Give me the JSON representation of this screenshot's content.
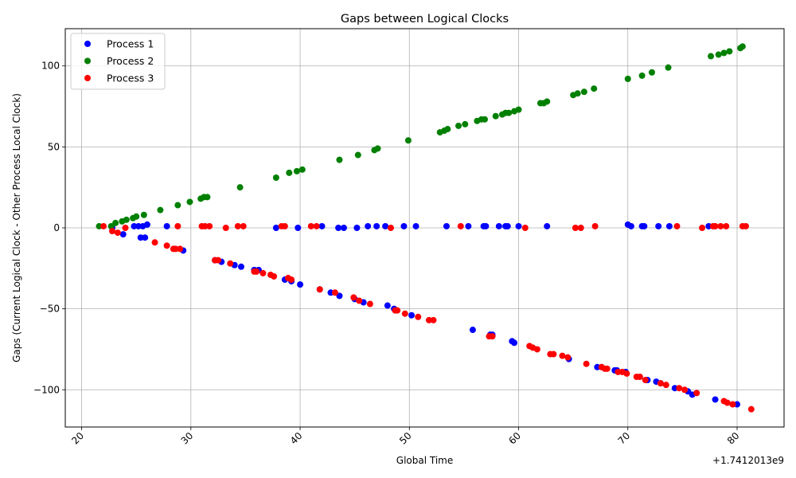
{
  "chart_data": {
    "type": "scatter",
    "title": "Gaps between Logical Clocks",
    "xlabel": "Global Time",
    "ylabel": "Gaps (Current Logical Clock - Other Process Local Clock)",
    "x_offset_label": "+1.7412013e9",
    "xlim": [
      18.5,
      84.3
    ],
    "ylim": [
      -123,
      123
    ],
    "xticks": [
      20,
      30,
      40,
      50,
      60,
      70,
      80
    ],
    "yticks": [
      -100,
      -50,
      0,
      50,
      100
    ],
    "grid": true,
    "legend_position": "top-left",
    "series": [
      {
        "name": "Process 1",
        "color": "#0000ff",
        "points": [
          [
            22.8,
            0
          ],
          [
            23.8,
            -4
          ],
          [
            24.8,
            1
          ],
          [
            25.2,
            1
          ],
          [
            25.4,
            -6
          ],
          [
            25.6,
            1
          ],
          [
            25.8,
            -6
          ],
          [
            26.0,
            2
          ],
          [
            27.8,
            1
          ],
          [
            29.3,
            -14
          ],
          [
            32.2,
            -20
          ],
          [
            32.8,
            -21
          ],
          [
            34.0,
            -23
          ],
          [
            34.6,
            -24
          ],
          [
            35.8,
            -26
          ],
          [
            36.2,
            -26
          ],
          [
            37.8,
            0
          ],
          [
            38.6,
            -32
          ],
          [
            39.2,
            -33
          ],
          [
            39.8,
            0
          ],
          [
            40.0,
            -35
          ],
          [
            42.0,
            1
          ],
          [
            41.8,
            -38
          ],
          [
            42.8,
            -40
          ],
          [
            43.5,
            0
          ],
          [
            43.6,
            -42
          ],
          [
            44.0,
            0
          ],
          [
            45.0,
            -44
          ],
          [
            45.2,
            0
          ],
          [
            45.8,
            -46
          ],
          [
            46.2,
            1
          ],
          [
            47.0,
            1
          ],
          [
            47.8,
            1
          ],
          [
            48.0,
            -48
          ],
          [
            48.6,
            -50
          ],
          [
            49.5,
            1
          ],
          [
            50.2,
            -54
          ],
          [
            50.6,
            1
          ],
          [
            53.4,
            1
          ],
          [
            55.4,
            1
          ],
          [
            55.8,
            -63
          ],
          [
            56.8,
            1
          ],
          [
            57.0,
            1
          ],
          [
            57.4,
            -66
          ],
          [
            57.6,
            -66
          ],
          [
            58.2,
            1
          ],
          [
            58.8,
            1
          ],
          [
            59.0,
            1
          ],
          [
            59.4,
            -70
          ],
          [
            59.6,
            -71
          ],
          [
            60.0,
            1
          ],
          [
            62.6,
            1
          ],
          [
            64.6,
            -81
          ],
          [
            67.2,
            -86
          ],
          [
            67.6,
            -86
          ],
          [
            68.8,
            -88
          ],
          [
            69.0,
            -88
          ],
          [
            69.8,
            -89
          ],
          [
            70.0,
            2
          ],
          [
            70.3,
            1
          ],
          [
            71.3,
            1
          ],
          [
            71.5,
            1
          ],
          [
            71.8,
            -94
          ],
          [
            72.6,
            -95
          ],
          [
            72.8,
            1
          ],
          [
            73.0,
            -96
          ],
          [
            73.8,
            1
          ],
          [
            74.3,
            -99
          ],
          [
            75.5,
            -101
          ],
          [
            75.9,
            -103
          ],
          [
            77.4,
            1
          ],
          [
            78.0,
            -106
          ],
          [
            80.0,
            -109
          ]
        ]
      },
      {
        "name": "Process 2",
        "color": "#008000",
        "points": [
          [
            21.6,
            1
          ],
          [
            22.7,
            1
          ],
          [
            23.1,
            3
          ],
          [
            23.7,
            4
          ],
          [
            24.1,
            5
          ],
          [
            24.7,
            6
          ],
          [
            25.0,
            7
          ],
          [
            25.7,
            8
          ],
          [
            27.2,
            11
          ],
          [
            28.8,
            14
          ],
          [
            29.9,
            16
          ],
          [
            30.9,
            18
          ],
          [
            31.2,
            19
          ],
          [
            31.5,
            19
          ],
          [
            34.5,
            25
          ],
          [
            37.8,
            31
          ],
          [
            39.0,
            34
          ],
          [
            39.7,
            35
          ],
          [
            40.2,
            36
          ],
          [
            43.6,
            42
          ],
          [
            45.3,
            45
          ],
          [
            46.8,
            48
          ],
          [
            47.1,
            49
          ],
          [
            49.9,
            54
          ],
          [
            52.8,
            59
          ],
          [
            53.2,
            60
          ],
          [
            53.5,
            61
          ],
          [
            54.5,
            63
          ],
          [
            55.1,
            64
          ],
          [
            56.2,
            66
          ],
          [
            56.6,
            67
          ],
          [
            56.9,
            67
          ],
          [
            57.9,
            69
          ],
          [
            58.5,
            70
          ],
          [
            58.8,
            71
          ],
          [
            59.1,
            71
          ],
          [
            59.6,
            72
          ],
          [
            60.0,
            73
          ],
          [
            62.0,
            77
          ],
          [
            62.3,
            77
          ],
          [
            62.6,
            78
          ],
          [
            65.0,
            82
          ],
          [
            65.4,
            83
          ],
          [
            66.0,
            84
          ],
          [
            66.9,
            86
          ],
          [
            70.0,
            92
          ],
          [
            71.3,
            94
          ],
          [
            72.2,
            96
          ],
          [
            73.7,
            99
          ],
          [
            77.6,
            106
          ],
          [
            78.3,
            107
          ],
          [
            78.8,
            108
          ],
          [
            79.3,
            109
          ],
          [
            80.3,
            111
          ],
          [
            80.5,
            112
          ]
        ]
      },
      {
        "name": "Process 3",
        "color": "#ff0000",
        "points": [
          [
            22.0,
            1
          ],
          [
            22.8,
            -2
          ],
          [
            23.3,
            -3
          ],
          [
            24.0,
            0
          ],
          [
            26.7,
            -9
          ],
          [
            27.8,
            -11
          ],
          [
            28.4,
            -13
          ],
          [
            28.6,
            -13
          ],
          [
            28.8,
            1
          ],
          [
            29.0,
            -13
          ],
          [
            31.0,
            1
          ],
          [
            31.3,
            1
          ],
          [
            31.7,
            1
          ],
          [
            32.2,
            -20
          ],
          [
            32.5,
            -20
          ],
          [
            33.2,
            0
          ],
          [
            33.6,
            -22
          ],
          [
            34.3,
            1
          ],
          [
            34.8,
            1
          ],
          [
            35.8,
            -27
          ],
          [
            36.0,
            -27
          ],
          [
            36.6,
            -28
          ],
          [
            37.3,
            -29
          ],
          [
            37.6,
            -30
          ],
          [
            38.3,
            1
          ],
          [
            38.6,
            1
          ],
          [
            38.9,
            -31
          ],
          [
            39.2,
            -32
          ],
          [
            41.0,
            1
          ],
          [
            41.5,
            1
          ],
          [
            41.8,
            -38
          ],
          [
            43.2,
            -40
          ],
          [
            44.9,
            -43
          ],
          [
            45.4,
            -45
          ],
          [
            46.4,
            -47
          ],
          [
            48.3,
            0
          ],
          [
            48.7,
            -51
          ],
          [
            48.9,
            -51
          ],
          [
            49.6,
            -53
          ],
          [
            50.8,
            -55
          ],
          [
            51.8,
            -57
          ],
          [
            52.2,
            -57
          ],
          [
            54.7,
            1
          ],
          [
            57.3,
            -67
          ],
          [
            57.6,
            -67
          ],
          [
            60.6,
            0
          ],
          [
            61.0,
            -73
          ],
          [
            61.3,
            -74
          ],
          [
            61.7,
            -75
          ],
          [
            62.9,
            -78
          ],
          [
            63.2,
            -78
          ],
          [
            64.0,
            -79
          ],
          [
            64.5,
            -80
          ],
          [
            65.2,
            0
          ],
          [
            65.7,
            0
          ],
          [
            66.2,
            -84
          ],
          [
            67.0,
            1
          ],
          [
            67.6,
            -86
          ],
          [
            67.9,
            -87
          ],
          [
            68.1,
            -87
          ],
          [
            69.1,
            -89
          ],
          [
            69.5,
            -89
          ],
          [
            69.9,
            -90
          ],
          [
            70.8,
            -92
          ],
          [
            71.1,
            -92
          ],
          [
            71.6,
            -94
          ],
          [
            73.0,
            -96
          ],
          [
            73.5,
            -97
          ],
          [
            74.5,
            1
          ],
          [
            74.7,
            -99
          ],
          [
            75.2,
            -100
          ],
          [
            76.3,
            -102
          ],
          [
            76.8,
            0
          ],
          [
            77.8,
            1
          ],
          [
            78.0,
            1
          ],
          [
            78.5,
            1
          ],
          [
            79.0,
            1
          ],
          [
            78.8,
            -107
          ],
          [
            79.1,
            -108
          ],
          [
            79.6,
            -109
          ],
          [
            80.5,
            1
          ],
          [
            80.8,
            1
          ],
          [
            81.3,
            -112
          ]
        ]
      }
    ]
  }
}
